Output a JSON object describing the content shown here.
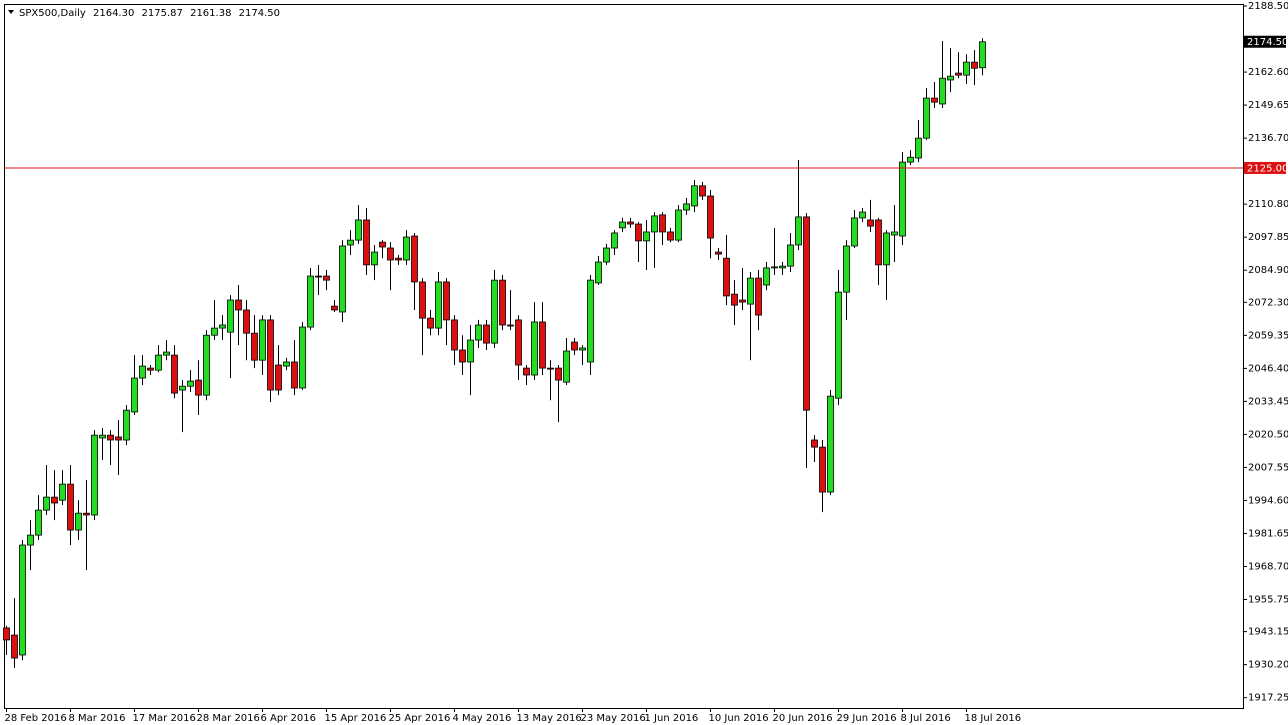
{
  "chart_data": {
    "type": "candlestick",
    "title": "SPX500,Daily",
    "ohlc_labels": [
      "2164.30",
      "2175.87",
      "2161.38",
      "2174.50"
    ],
    "up_color": "#22dd22",
    "down_color": "#dd1111",
    "ylim": [
      1913.2,
      2189.3
    ],
    "yticks": [
      {
        "value": 2188.5,
        "label": "2188.50"
      },
      {
        "value": 2162.6,
        "label": "2162.60"
      },
      {
        "value": 2149.65,
        "label": "2149.65"
      },
      {
        "value": 2136.7,
        "label": "2136.70"
      },
      {
        "value": 2110.8,
        "label": "2110.80"
      },
      {
        "value": 2097.85,
        "label": "2097.85"
      },
      {
        "value": 2084.9,
        "label": "2084.90"
      },
      {
        "value": 2072.3,
        "label": "2072.30"
      },
      {
        "value": 2059.35,
        "label": "2059.35"
      },
      {
        "value": 2046.4,
        "label": "2046.40"
      },
      {
        "value": 2033.45,
        "label": "2033.45"
      },
      {
        "value": 2020.5,
        "label": "2020.50"
      },
      {
        "value": 2007.55,
        "label": "2007.55"
      },
      {
        "value": 1994.6,
        "label": "1994.60"
      },
      {
        "value": 1981.65,
        "label": "1981.65"
      },
      {
        "value": 1968.7,
        "label": "1968.70"
      },
      {
        "value": 1955.75,
        "label": "1955.75"
      },
      {
        "value": 1943.15,
        "label": "1943.15"
      },
      {
        "value": 1930.2,
        "label": "1930.20"
      },
      {
        "value": 1917.25,
        "label": "1917.25"
      }
    ],
    "xticks": [
      {
        "value": 0,
        "label": "28 Feb 2016"
      },
      {
        "value": 8,
        "label": "8 Mar 2016"
      },
      {
        "value": 16,
        "label": "17 Mar 2016"
      },
      {
        "value": 24,
        "label": "28 Mar 2016"
      },
      {
        "value": 32,
        "label": "6 Apr 2016"
      },
      {
        "value": 40,
        "label": "15 Apr 2016"
      },
      {
        "value": 48,
        "label": "25 Apr 2016"
      },
      {
        "value": 56,
        "label": "4 May 2016"
      },
      {
        "value": 64,
        "label": "13 May 2016"
      },
      {
        "value": 72,
        "label": "23 May 2016"
      },
      {
        "value": 80,
        "label": "1 Jun 2016"
      },
      {
        "value": 88,
        "label": "10 Jun 2016"
      },
      {
        "value": 96,
        "label": "20 Jun 2016"
      },
      {
        "value": 104,
        "label": "29 Jun 2016"
      },
      {
        "value": 112,
        "label": "8 Jul 2016"
      },
      {
        "value": 120,
        "label": "18 Jul 2016"
      }
    ],
    "hline": {
      "value": 2125,
      "label": "2125.00",
      "color": "#dd1111"
    },
    "open": [
      1944.6,
      1941.8,
      1934.0,
      1977.1,
      1981.0,
      1990.8,
      1995.9,
      1994.7,
      2001.0,
      1983.0,
      1989.6,
      1988.9,
      2019.1,
      2020.2,
      2019.5,
      2018.3,
      2029.3,
      2042.6,
      2046.5,
      2045.7,
      2051.6,
      2051.6,
      2037.9,
      2039.4,
      2041.8,
      2035.9,
      2059.4,
      2062.2,
      2060.6,
      2073.2,
      2069.3,
      2060.2,
      2049.6,
      2065.4,
      2047.7,
      2047.3,
      2048.9,
      2038.7,
      2062.6,
      2082.6,
      2082.6,
      2070.8,
      2068.5,
      2094.8,
      2096.7,
      2104.6,
      2087.0,
      2095.9,
      2093.6,
      2089.6,
      2088.9,
      2098.3,
      2080.3,
      2066.1,
      2062.2,
      2080.3,
      2065.4,
      2053.6,
      2048.9,
      2057.5,
      2063.4,
      2056.3,
      2081.0,
      2063.4,
      2065.4,
      2046.5,
      2043.8,
      2064.6,
      2046.5,
      2046.5,
      2041.0,
      2056.7,
      2053.6,
      2048.9,
      2079.9,
      2088.1,
      2093.6,
      2101.5,
      2103.8,
      2103.0,
      2096.4,
      2099.9,
      2106.6,
      2099.9,
      2096.7,
      2108.5,
      2110.1,
      2118.0,
      2114.0,
      2092.0,
      2089.6,
      2075.5,
      2073.2,
      2071.6,
      2081.8,
      2079.1,
      2085.8,
      2085.8,
      2086.5,
      2094.8,
      2105.8,
      2018.3,
      2015.5,
      1997.9,
      2034.7,
      2076.3,
      2094.4,
      2105.4,
      2104.6,
      2104.6,
      2087.0,
      2098.7,
      2098.3,
      2127.3,
      2128.9,
      2136.7,
      2152.4,
      2150.1,
      2159.5,
      2162.2,
      2161.4,
      2166.5,
      2164.3
    ],
    "high": [
      1945.4,
      1956.3,
      1979.1,
      1986.9,
      1996.7,
      2008.5,
      2006.5,
      2006.5,
      2008.5,
      1994.7,
      2002.6,
      2022.2,
      2023.0,
      2022.2,
      2026.1,
      2032.0,
      2051.6,
      2051.6,
      2047.7,
      2055.5,
      2057.5,
      2055.5,
      2041.8,
      2045.7,
      2049.6,
      2061.4,
      2073.2,
      2067.3,
      2075.1,
      2079.1,
      2073.2,
      2067.3,
      2067.3,
      2067.3,
      2055.5,
      2050.5,
      2057.5,
      2064.6,
      2085.8,
      2087.0,
      2085.0,
      2073.2,
      2096.7,
      2100.6,
      2110.4,
      2109.3,
      2094.8,
      2096.7,
      2095.9,
      2090.8,
      2100.6,
      2099.5,
      2081.8,
      2069.3,
      2084.2,
      2081.8,
      2067.3,
      2059.4,
      2063.4,
      2065.4,
      2065.4,
      2085.0,
      2083.0,
      2077.1,
      2067.3,
      2047.7,
      2072.4,
      2072.4,
      2049.6,
      2047.7,
      2058.3,
      2058.3,
      2055.5,
      2083.0,
      2090.5,
      2095.2,
      2100.6,
      2105.4,
      2105.4,
      2103.8,
      2104.6,
      2107.7,
      2107.7,
      2101.5,
      2110.4,
      2113.2,
      2120.3,
      2119.5,
      2116.4,
      2093.6,
      2098.7,
      2081.0,
      2085.8,
      2084.2,
      2085.0,
      2088.1,
      2101.5,
      2088.1,
      2099.5,
      2128.1,
      2107.3,
      2020.2,
      2018.3,
      2037.9,
      2085.0,
      2096.7,
      2108.5,
      2109.3,
      2112.5,
      2105.4,
      2100.6,
      2110.4,
      2131.2,
      2132.0,
      2143.8,
      2156.3,
      2158.7,
      2174.8,
      2172.0,
      2170.4,
      2169.6,
      2171.2,
      2175.87
    ],
    "low": [
      1934.0,
      1928.9,
      1932.0,
      1967.3,
      1979.1,
      1988.9,
      1986.9,
      1992.8,
      1977.1,
      1979.1,
      1967.3,
      1986.9,
      2010.4,
      2008.5,
      2004.6,
      2016.3,
      2028.1,
      2039.9,
      2043.8,
      2044.9,
      2049.6,
      2034.7,
      2021.4,
      2037.1,
      2028.1,
      2033.9,
      2057.5,
      2057.5,
      2042.6,
      2055.5,
      2049.6,
      2046.5,
      2043.8,
      2033.2,
      2035.9,
      2045.7,
      2035.9,
      2037.9,
      2061.4,
      2075.1,
      2077.1,
      2068.5,
      2064.6,
      2090.8,
      2095.2,
      2083.0,
      2081.0,
      2089.6,
      2077.1,
      2087.0,
      2087.0,
      2069.3,
      2051.6,
      2059.4,
      2059.4,
      2055.5,
      2047.7,
      2043.8,
      2035.9,
      2054.4,
      2053.6,
      2054.4,
      2061.4,
      2061.4,
      2041.8,
      2039.9,
      2041.8,
      2043.8,
      2033.9,
      2025.3,
      2039.9,
      2051.6,
      2047.7,
      2043.8,
      2079.1,
      2087.0,
      2090.8,
      2099.9,
      2101.5,
      2088.1,
      2085.0,
      2085.8,
      2094.8,
      2095.9,
      2095.9,
      2106.6,
      2107.7,
      2112.5,
      2089.6,
      2088.9,
      2071.2,
      2063.4,
      2069.3,
      2049.6,
      2061.4,
      2077.1,
      2083.0,
      2083.0,
      2084.2,
      2092.8,
      2007.3,
      2009.7,
      1990.0,
      1996.7,
      2032.0,
      2065.4,
      2093.6,
      2103.8,
      2099.9,
      2079.1,
      2073.2,
      2088.1,
      2094.8,
      2126.1,
      2127.3,
      2135.9,
      2148.5,
      2148.5,
      2154.7,
      2160.2,
      2157.9,
      2157.5,
      2161.38
    ],
    "close": [
      1939.9,
      1932.8,
      1977.1,
      1981.0,
      1990.8,
      1995.9,
      1993.6,
      2001.0,
      1983.0,
      1989.6,
      1988.9,
      2020.2,
      2020.2,
      2018.3,
      2018.3,
      2030.0,
      2042.6,
      2047.3,
      2045.7,
      2051.6,
      2052.8,
      2036.7,
      2039.4,
      2041.4,
      2035.9,
      2059.4,
      2062.2,
      2063.4,
      2073.2,
      2069.3,
      2060.2,
      2049.6,
      2065.4,
      2037.9,
      2037.9,
      2048.9,
      2038.7,
      2062.6,
      2082.6,
      2082.2,
      2081.0,
      2069.3,
      2094.4,
      2096.7,
      2104.6,
      2087.0,
      2092.0,
      2094.0,
      2088.9,
      2088.9,
      2097.9,
      2080.3,
      2066.1,
      2062.2,
      2080.3,
      2065.4,
      2053.6,
      2048.9,
      2057.5,
      2063.4,
      2056.3,
      2081.0,
      2063.4,
      2063.0,
      2047.7,
      2043.8,
      2064.6,
      2046.5,
      2046.1,
      2041.8,
      2053.2,
      2053.6,
      2054.4,
      2081.0,
      2088.1,
      2093.6,
      2099.5,
      2103.8,
      2103.0,
      2096.4,
      2099.9,
      2106.2,
      2099.9,
      2096.7,
      2108.5,
      2110.9,
      2118.0,
      2114.0,
      2097.5,
      2091.2,
      2074.8,
      2071.2,
      2072.4,
      2081.8,
      2067.3,
      2085.8,
      2086.2,
      2086.5,
      2094.8,
      2105.8,
      2030.0,
      2015.5,
      1997.9,
      2035.5,
      2076.3,
      2094.4,
      2105.4,
      2107.7,
      2102.2,
      2087.0,
      2099.5,
      2099.9,
      2127.3,
      2129.2,
      2136.7,
      2152.4,
      2150.8,
      2160.2,
      2161.0,
      2161.4,
      2166.5,
      2164.1,
      2174.5
    ]
  }
}
